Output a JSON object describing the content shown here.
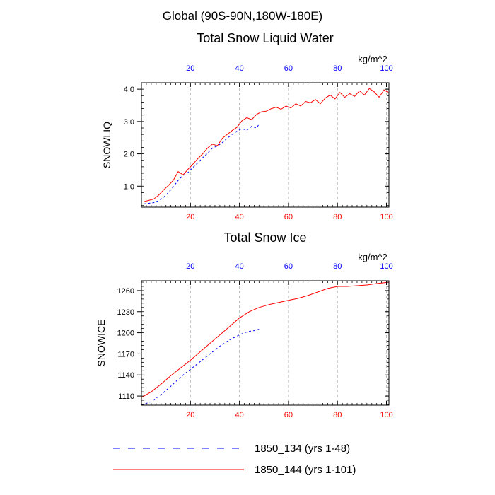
{
  "suptitle": "Global (90S-90N,180W-180E)",
  "colors": {
    "series_a": "#0000ff",
    "series_b": "#ff0000",
    "bottom_ticks": "#ff0000",
    "top_ticks": "#0000ff",
    "grid": "#bbbbbb"
  },
  "legend": [
    {
      "label": "1850_134 (yrs 1-48)",
      "color": "#0000ff",
      "style": "dashed"
    },
    {
      "label": "1850_144 (yrs 1-101)",
      "color": "#ff0000",
      "style": "solid"
    }
  ],
  "chart_data": [
    {
      "type": "line",
      "title": "Total Snow Liquid Water",
      "units": "kg/m^2",
      "ylabel": "SNOWLIQ",
      "xlim": [
        0,
        101
      ],
      "ylim": [
        0.35,
        4.2
      ],
      "yticks": [
        1.0,
        2.0,
        3.0,
        4.0
      ],
      "ytick_labels": [
        "1.0",
        "2.0",
        "3.0",
        "4.0"
      ],
      "xticks": [
        20,
        40,
        60,
        80,
        100
      ],
      "xtick_labels": [
        "20",
        "40",
        "60",
        "80",
        "100"
      ],
      "grid": "x-dashed",
      "series": [
        {
          "name": "1850_134 (yrs 1-48)",
          "x": [
            1,
            3,
            5,
            7,
            9,
            11,
            13,
            15,
            17,
            19,
            21,
            23,
            25,
            27,
            29,
            31,
            33,
            35,
            37,
            39,
            41,
            43,
            45,
            47,
            48
          ],
          "values": [
            0.45,
            0.47,
            0.49,
            0.55,
            0.65,
            0.8,
            0.98,
            1.18,
            1.33,
            1.42,
            1.58,
            1.72,
            1.88,
            2.02,
            2.18,
            2.24,
            2.35,
            2.48,
            2.6,
            2.7,
            2.78,
            2.73,
            2.85,
            2.8,
            2.92
          ]
        },
        {
          "name": "1850_144 (yrs 1-101)",
          "x": [
            1,
            3,
            5,
            7,
            9,
            11,
            13,
            15,
            17,
            19,
            21,
            23,
            25,
            27,
            29,
            31,
            33,
            35,
            37,
            39,
            41,
            43,
            45,
            47,
            49,
            51,
            53,
            55,
            57,
            59,
            61,
            63,
            65,
            67,
            69,
            71,
            73,
            75,
            77,
            79,
            81,
            83,
            85,
            87,
            89,
            91,
            93,
            95,
            97,
            99,
            101
          ],
          "values": [
            0.52,
            0.56,
            0.6,
            0.72,
            0.88,
            1.02,
            1.18,
            1.45,
            1.35,
            1.52,
            1.68,
            1.85,
            2.0,
            2.18,
            2.3,
            2.25,
            2.48,
            2.6,
            2.72,
            2.82,
            3.02,
            3.12,
            3.06,
            3.22,
            3.3,
            3.32,
            3.4,
            3.44,
            3.38,
            3.48,
            3.42,
            3.55,
            3.48,
            3.62,
            3.58,
            3.68,
            3.55,
            3.72,
            3.82,
            3.7,
            3.9,
            3.75,
            3.86,
            3.78,
            3.95,
            3.82,
            4.02,
            3.92,
            3.75,
            3.98,
            3.88
          ]
        }
      ]
    },
    {
      "type": "line",
      "title": "Total Snow Ice",
      "units": "kg/m^2",
      "ylabel": "SNOWICE",
      "xlim": [
        0,
        101
      ],
      "ylim": [
        1097,
        1274
      ],
      "yticks": [
        1110,
        1140,
        1170,
        1200,
        1230,
        1260
      ],
      "ytick_labels": [
        "1110",
        "1140",
        "1170",
        "1200",
        "1230",
        "1260"
      ],
      "xticks": [
        20,
        40,
        60,
        80,
        100
      ],
      "xtick_labels": [
        "20",
        "40",
        "60",
        "80",
        "100"
      ],
      "grid": "x-dashed",
      "series": [
        {
          "name": "1850_134 (yrs 1-48)",
          "x": [
            0,
            4,
            8,
            12,
            16,
            20,
            24,
            28,
            32,
            36,
            40,
            42,
            44,
            46,
            48
          ],
          "values": [
            1097,
            1102,
            1112,
            1124,
            1137,
            1148,
            1159,
            1170,
            1181,
            1190,
            1197,
            1200,
            1202,
            1203,
            1205
          ]
        },
        {
          "name": "1850_144 (yrs 1-101)",
          "x": [
            0,
            4,
            8,
            12,
            16,
            20,
            24,
            28,
            32,
            36,
            40,
            44,
            48,
            52,
            56,
            60,
            64,
            68,
            72,
            76,
            80,
            84,
            88,
            92,
            96,
            101
          ],
          "values": [
            1108,
            1116,
            1127,
            1139,
            1150,
            1161,
            1173,
            1185,
            1197,
            1209,
            1221,
            1230,
            1236,
            1240,
            1243,
            1246,
            1249,
            1253,
            1258,
            1263,
            1266,
            1266,
            1267,
            1268,
            1270,
            1272
          ]
        }
      ]
    }
  ]
}
